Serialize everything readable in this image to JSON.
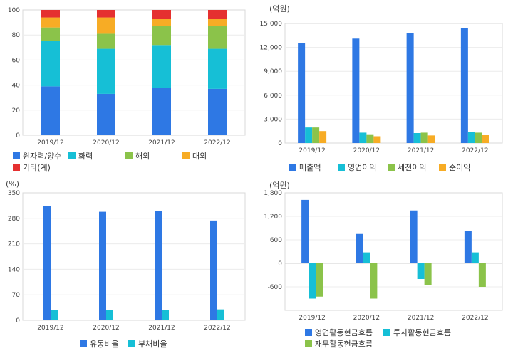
{
  "chart_data": [
    {
      "type": "bar",
      "stacked": true,
      "unit": "",
      "categories": [
        "2019/12",
        "2020/12",
        "2021/12",
        "2022/12"
      ],
      "ylim": [
        0,
        100
      ],
      "yticks": [
        "0",
        "20",
        "40",
        "60",
        "80",
        "100"
      ],
      "series": [
        {
          "name": "원자력/양수",
          "color": "#2e78e4",
          "values": [
            39,
            33,
            38,
            37
          ]
        },
        {
          "name": "화력",
          "color": "#16bfd6",
          "values": [
            36,
            36,
            34,
            32
          ]
        },
        {
          "name": "해외",
          "color": "#8bc34a",
          "values": [
            11,
            12,
            15,
            18
          ]
        },
        {
          "name": "대외",
          "color": "#f7ac25",
          "values": [
            8,
            13,
            6,
            6
          ]
        },
        {
          "name": "기타(계)",
          "color": "#e53030",
          "values": [
            6,
            6,
            7,
            7
          ]
        }
      ],
      "legend_position": "bottom"
    },
    {
      "type": "bar",
      "unit": "(억원)",
      "categories": [
        "2019/12",
        "2020/12",
        "2021/12",
        "2022/12"
      ],
      "ylim": [
        0,
        15000
      ],
      "yticks": [
        "0",
        "3,000",
        "6,000",
        "9,000",
        "12,000",
        "15,000"
      ],
      "series": [
        {
          "name": "매출액",
          "color": "#2e78e4",
          "values": [
            12500,
            13100,
            13800,
            14400
          ]
        },
        {
          "name": "영업이익",
          "color": "#16bfd6",
          "values": [
            1950,
            1300,
            1250,
            1350
          ]
        },
        {
          "name": "세전이익",
          "color": "#8bc34a",
          "values": [
            1950,
            1100,
            1300,
            1300
          ]
        },
        {
          "name": "순이익",
          "color": "#f7ac25",
          "values": [
            1500,
            850,
            950,
            1000
          ]
        }
      ],
      "legend_position": "bottom"
    },
    {
      "type": "bar",
      "unit": "(%)",
      "categories": [
        "2019/12",
        "2020/12",
        "2021/12",
        "2022/12"
      ],
      "ylim": [
        0,
        350
      ],
      "yticks": [
        "0",
        "70",
        "140",
        "210",
        "280",
        "350"
      ],
      "series": [
        {
          "name": "유동비율",
          "color": "#2e78e4",
          "values": [
            314,
            298,
            300,
            274
          ]
        },
        {
          "name": "부채비율",
          "color": "#16bfd6",
          "values": [
            28,
            28,
            28,
            30
          ]
        }
      ],
      "legend_position": "bottom"
    },
    {
      "type": "bar",
      "unit": "(억원)",
      "categories": [
        "2019/12",
        "2020/12",
        "2021/12",
        "2022/12"
      ],
      "ylim": [
        -1200,
        1800
      ],
      "yticks": [
        "-1,200",
        "-600",
        "0",
        "600",
        "1,200",
        "1,800"
      ],
      "yticks_visible": [
        "",
        "-600",
        "0",
        "600",
        "1,200",
        "1,800"
      ],
      "series": [
        {
          "name": "영업활동현금흐름",
          "color": "#2e78e4",
          "values": [
            1620,
            750,
            1350,
            820
          ]
        },
        {
          "name": "투자활동현금흐름",
          "color": "#16bfd6",
          "values": [
            -900,
            280,
            -400,
            280
          ]
        },
        {
          "name": "재무활동현금흐름",
          "color": "#8bc34a",
          "values": [
            -850,
            -900,
            -560,
            -600
          ]
        }
      ],
      "legend_position": "bottom"
    }
  ]
}
